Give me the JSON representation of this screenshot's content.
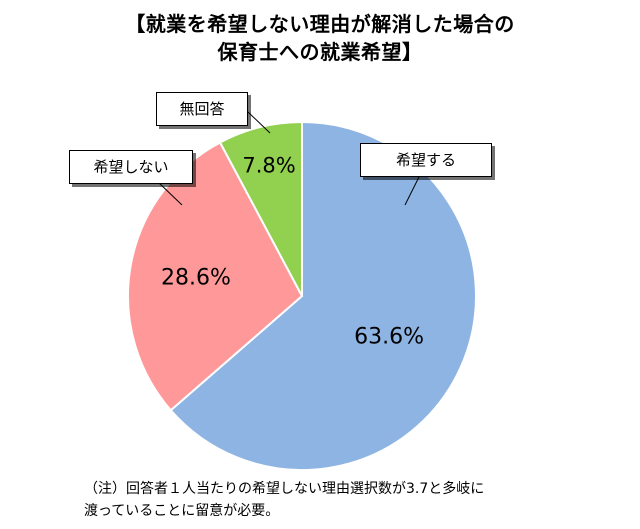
{
  "title": {
    "line1": "【就業を希望しない理由が解消した場合の",
    "line2": "保育士への就業希望】"
  },
  "chart_data": {
    "type": "pie",
    "title": "【就業を希望しない理由が解消した場合の保育士への就業希望】",
    "slices": [
      {
        "label": "希望する",
        "value": 63.6,
        "value_label": "63.6%",
        "color": "#8eb4e3"
      },
      {
        "label": "希望しない",
        "value": 28.6,
        "value_label": "28.6%",
        "color": "#ff9999"
      },
      {
        "label": "無回答",
        "value": 7.8,
        "value_label": "7.8%",
        "color": "#92d050"
      }
    ]
  },
  "note": {
    "line1": "（注）回答者１人当たりの希望しない理由選択数が3.7と多岐に",
    "line2": "渡っていることに留意が必要。"
  }
}
